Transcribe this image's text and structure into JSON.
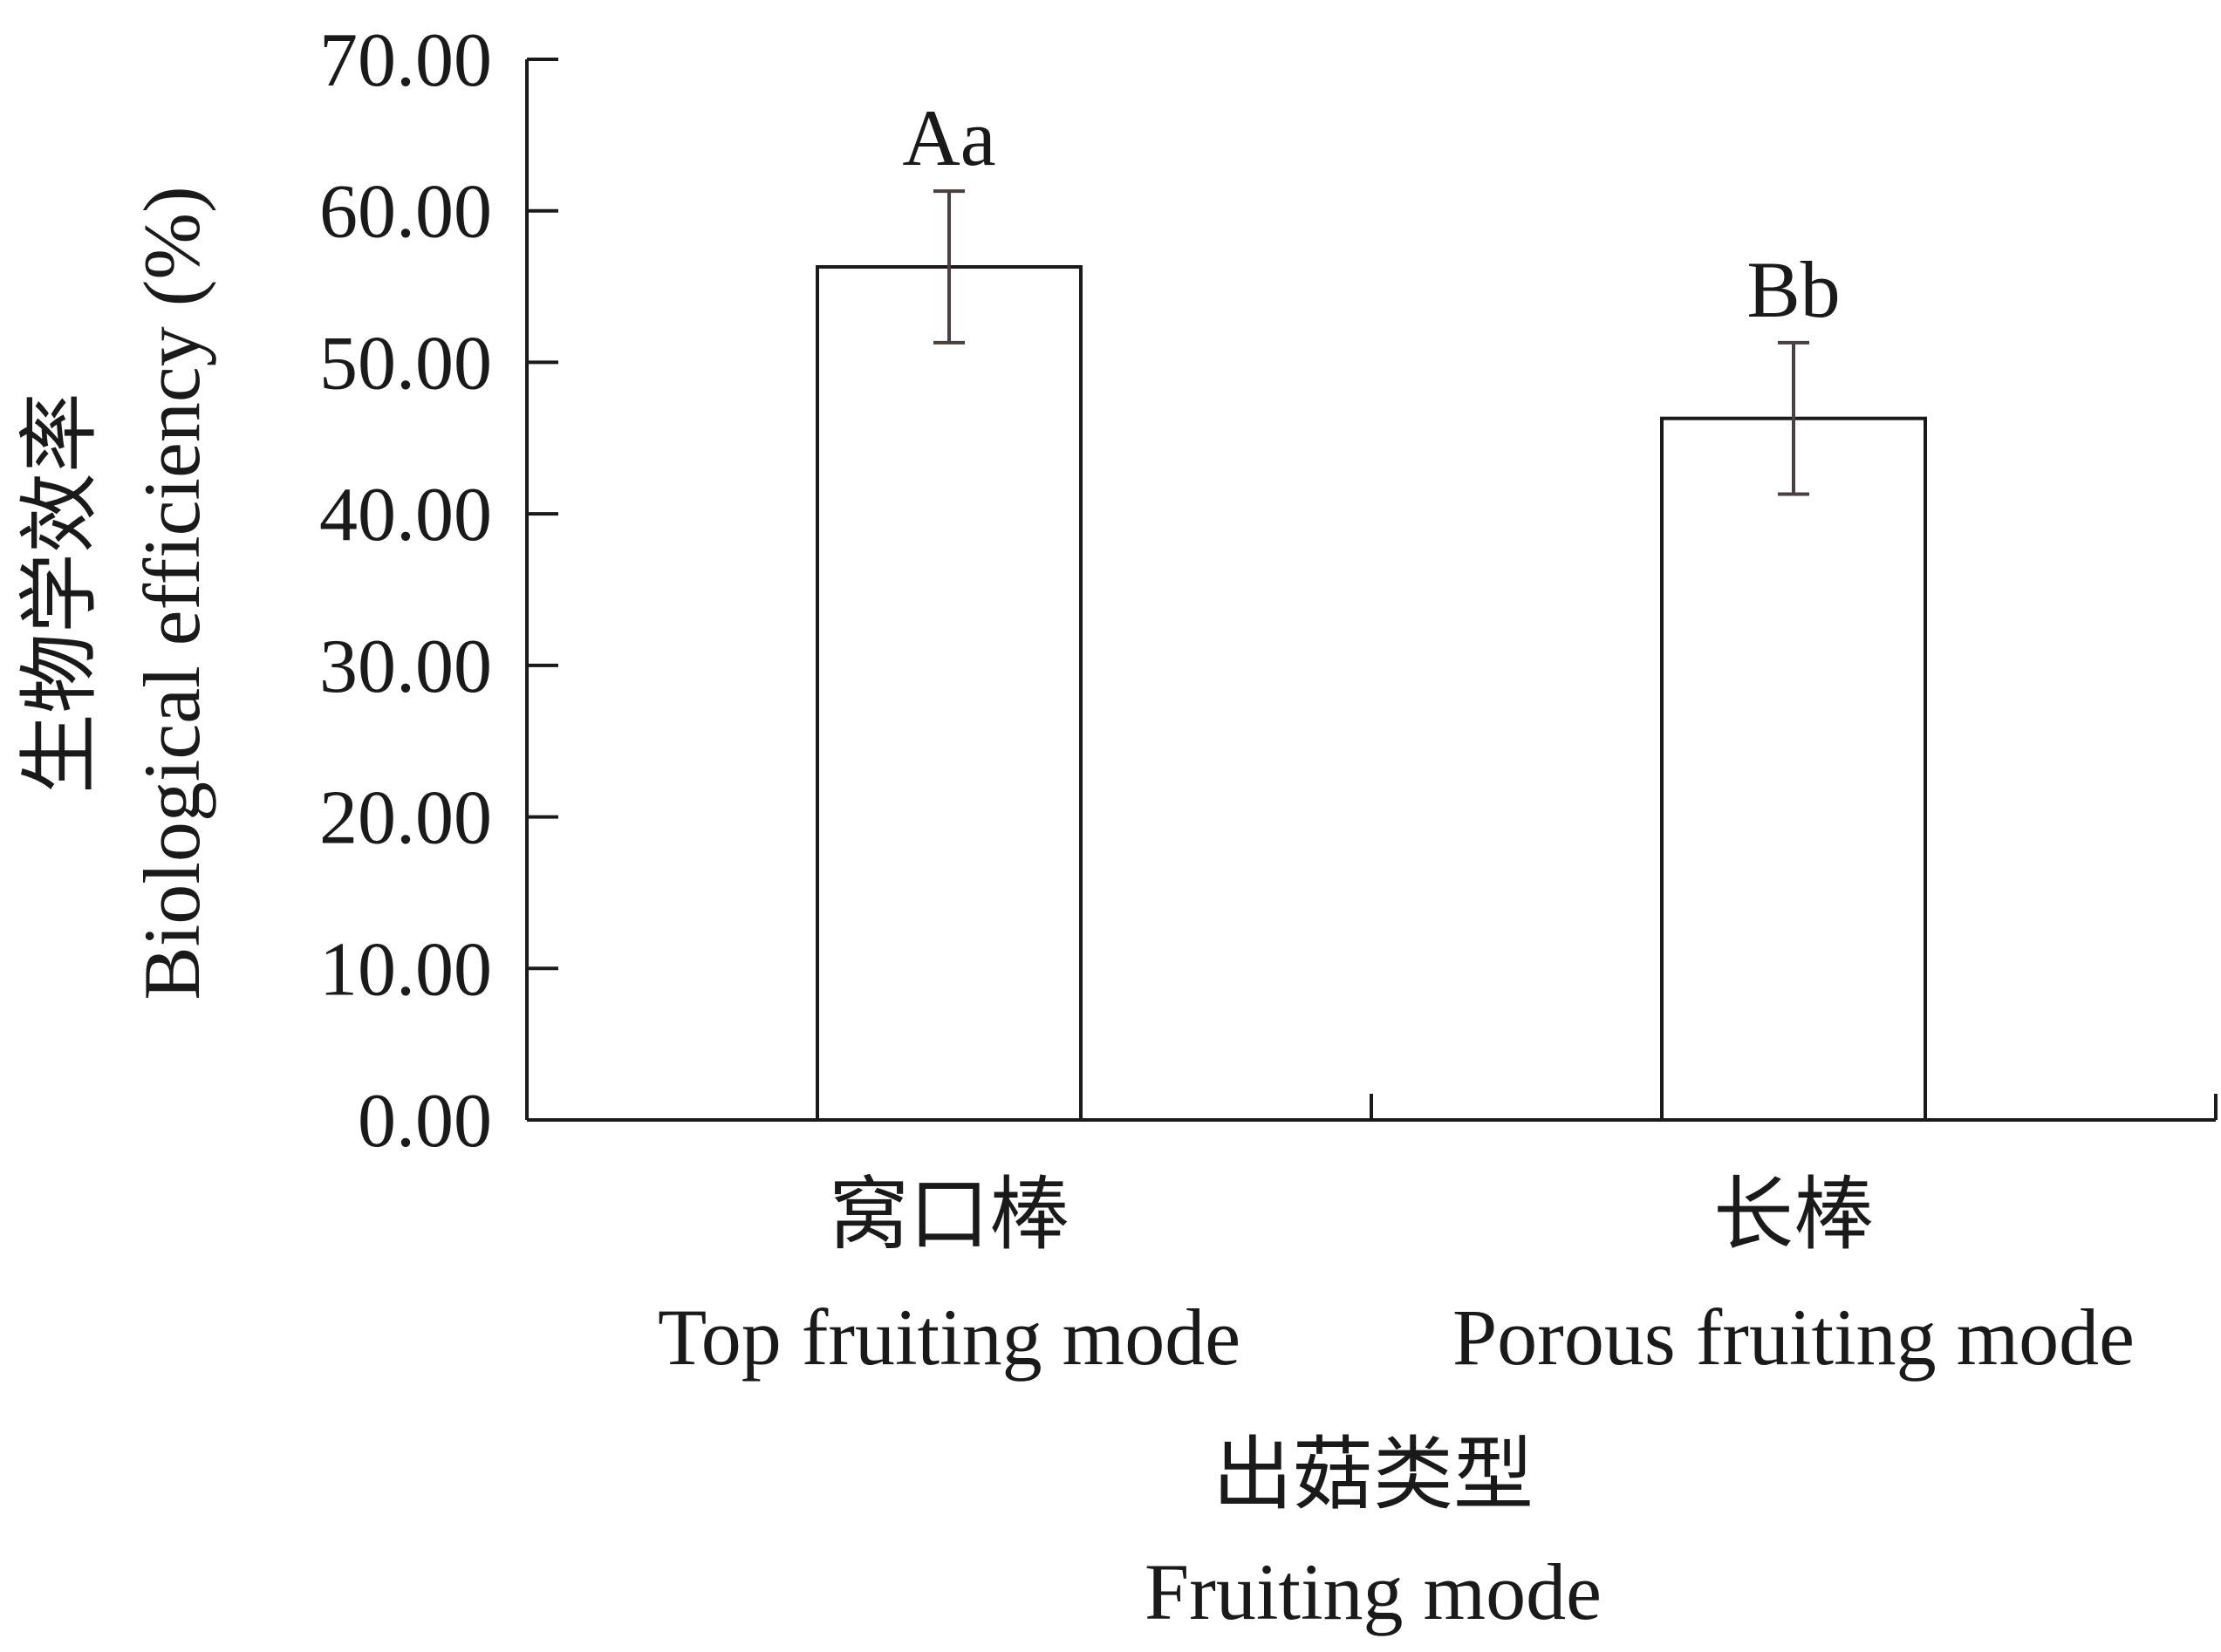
{
  "chart_data": {
    "type": "bar",
    "categories": [
      {
        "zh": "窝口棒",
        "en": "Top fruiting mode"
      },
      {
        "zh": "长棒",
        "en": "Porous fruiting mode"
      }
    ],
    "values": [
      56.3,
      46.3
    ],
    "errors": [
      5.0,
      5.0
    ],
    "significance": [
      "Aa",
      "Bb"
    ],
    "xlabel": {
      "zh": "出菇类型",
      "en": "Fruiting mode"
    },
    "ylabel": {
      "zh": "生物学效率",
      "en": "Biological efficiency (%)"
    },
    "ylim": [
      0,
      70
    ],
    "yticks": [
      "0.00",
      "10.00",
      "20.00",
      "30.00",
      "40.00",
      "50.00",
      "60.00",
      "70.00"
    ],
    "grid": false,
    "colors": {
      "bar_fill": "#ffffff",
      "bar_stroke": "#1a1a1a",
      "error_bar": "#4a4040",
      "axis": "#1a1a1a"
    }
  }
}
